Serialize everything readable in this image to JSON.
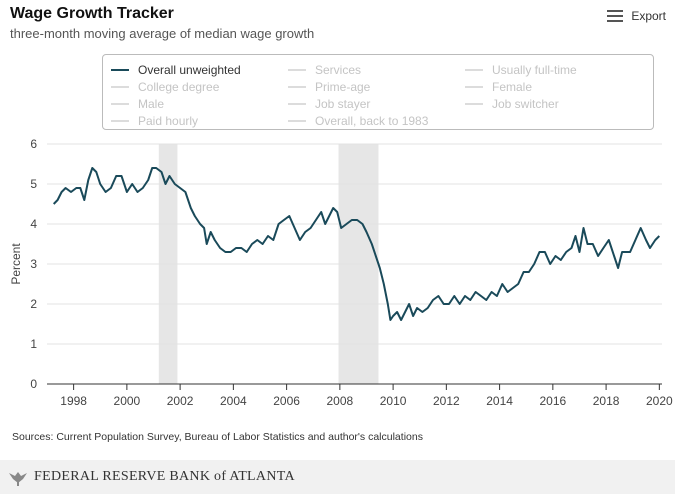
{
  "header": {
    "title": "Wage Growth Tracker",
    "subtitle": "three-month moving average of median wage growth",
    "export_label": "Export"
  },
  "legend": {
    "items": [
      {
        "label": "Overall unweighted",
        "active": true
      },
      {
        "label": "College degree",
        "active": false
      },
      {
        "label": "Male",
        "active": false
      },
      {
        "label": "Paid hourly",
        "active": false
      },
      {
        "label": "Services",
        "active": false
      },
      {
        "label": "Prime-age",
        "active": false
      },
      {
        "label": "Job stayer",
        "active": false
      },
      {
        "label": "Overall, back to 1983",
        "active": false
      },
      {
        "label": "Usually full-time",
        "active": false
      },
      {
        "label": "Female",
        "active": false
      },
      {
        "label": "Job switcher",
        "active": false
      }
    ]
  },
  "chart_data": {
    "type": "line",
    "title": "Wage Growth Tracker",
    "ylabel": "Percent",
    "xlabel": "",
    "ylim": [
      0,
      6
    ],
    "xlim": [
      1997,
      2020.1
    ],
    "yticks": [
      "0",
      "1",
      "2",
      "3",
      "4",
      "5",
      "6"
    ],
    "xticks": [
      "1998",
      "2000",
      "2002",
      "2004",
      "2006",
      "2008",
      "2010",
      "2012",
      "2014",
      "2016",
      "2018",
      "2020"
    ],
    "recessions": [
      {
        "start": 2001.2,
        "end": 2001.9
      },
      {
        "start": 2007.95,
        "end": 2009.45
      }
    ],
    "series": [
      {
        "name": "Overall unweighted",
        "color": "#1a4a5a",
        "points": [
          [
            1997.25,
            4.5
          ],
          [
            1997.4,
            4.6
          ],
          [
            1997.55,
            4.8
          ],
          [
            1997.7,
            4.9
          ],
          [
            1997.9,
            4.8
          ],
          [
            1998.1,
            4.9
          ],
          [
            1998.25,
            4.9
          ],
          [
            1998.4,
            4.6
          ],
          [
            1998.55,
            5.1
          ],
          [
            1998.7,
            5.4
          ],
          [
            1998.85,
            5.3
          ],
          [
            1999.0,
            5.0
          ],
          [
            1999.2,
            4.8
          ],
          [
            1999.4,
            4.9
          ],
          [
            1999.6,
            5.2
          ],
          [
            1999.8,
            5.2
          ],
          [
            2000.0,
            4.8
          ],
          [
            2000.2,
            5.0
          ],
          [
            2000.4,
            4.8
          ],
          [
            2000.6,
            4.9
          ],
          [
            2000.8,
            5.1
          ],
          [
            2000.95,
            5.4
          ],
          [
            2001.1,
            5.4
          ],
          [
            2001.3,
            5.3
          ],
          [
            2001.45,
            5.0
          ],
          [
            2001.6,
            5.2
          ],
          [
            2001.8,
            5.0
          ],
          [
            2002.0,
            4.9
          ],
          [
            2002.2,
            4.8
          ],
          [
            2002.4,
            4.4
          ],
          [
            2002.55,
            4.2
          ],
          [
            2002.75,
            4.0
          ],
          [
            2002.9,
            3.9
          ],
          [
            2003.0,
            3.5
          ],
          [
            2003.15,
            3.8
          ],
          [
            2003.3,
            3.6
          ],
          [
            2003.5,
            3.4
          ],
          [
            2003.7,
            3.3
          ],
          [
            2003.9,
            3.3
          ],
          [
            2004.1,
            3.4
          ],
          [
            2004.3,
            3.4
          ],
          [
            2004.5,
            3.3
          ],
          [
            2004.7,
            3.5
          ],
          [
            2004.9,
            3.6
          ],
          [
            2005.1,
            3.5
          ],
          [
            2005.3,
            3.7
          ],
          [
            2005.5,
            3.6
          ],
          [
            2005.7,
            4.0
          ],
          [
            2005.9,
            4.1
          ],
          [
            2006.1,
            4.2
          ],
          [
            2006.3,
            3.9
          ],
          [
            2006.5,
            3.6
          ],
          [
            2006.7,
            3.8
          ],
          [
            2006.9,
            3.9
          ],
          [
            2007.1,
            4.1
          ],
          [
            2007.3,
            4.3
          ],
          [
            2007.45,
            4.0
          ],
          [
            2007.6,
            4.2
          ],
          [
            2007.75,
            4.4
          ],
          [
            2007.9,
            4.3
          ],
          [
            2008.05,
            3.9
          ],
          [
            2008.25,
            4.0
          ],
          [
            2008.45,
            4.1
          ],
          [
            2008.65,
            4.1
          ],
          [
            2008.85,
            4.0
          ],
          [
            2009.0,
            3.8
          ],
          [
            2009.2,
            3.5
          ],
          [
            2009.35,
            3.2
          ],
          [
            2009.5,
            2.9
          ],
          [
            2009.65,
            2.5
          ],
          [
            2009.8,
            2.0
          ],
          [
            2009.9,
            1.6
          ],
          [
            2010.0,
            1.7
          ],
          [
            2010.15,
            1.8
          ],
          [
            2010.3,
            1.6
          ],
          [
            2010.45,
            1.8
          ],
          [
            2010.6,
            2.0
          ],
          [
            2010.75,
            1.7
          ],
          [
            2010.9,
            1.9
          ],
          [
            2011.1,
            1.8
          ],
          [
            2011.3,
            1.9
          ],
          [
            2011.5,
            2.1
          ],
          [
            2011.7,
            2.2
          ],
          [
            2011.9,
            2.0
          ],
          [
            2012.1,
            2.0
          ],
          [
            2012.3,
            2.2
          ],
          [
            2012.5,
            2.0
          ],
          [
            2012.7,
            2.2
          ],
          [
            2012.9,
            2.1
          ],
          [
            2013.1,
            2.3
          ],
          [
            2013.3,
            2.2
          ],
          [
            2013.5,
            2.1
          ],
          [
            2013.7,
            2.3
          ],
          [
            2013.9,
            2.2
          ],
          [
            2014.1,
            2.5
          ],
          [
            2014.3,
            2.3
          ],
          [
            2014.5,
            2.4
          ],
          [
            2014.7,
            2.5
          ],
          [
            2014.9,
            2.8
          ],
          [
            2015.1,
            2.8
          ],
          [
            2015.3,
            3.0
          ],
          [
            2015.5,
            3.3
          ],
          [
            2015.7,
            3.3
          ],
          [
            2015.9,
            3.0
          ],
          [
            2016.1,
            3.2
          ],
          [
            2016.3,
            3.1
          ],
          [
            2016.5,
            3.3
          ],
          [
            2016.7,
            3.4
          ],
          [
            2016.85,
            3.7
          ],
          [
            2017.0,
            3.3
          ],
          [
            2017.15,
            3.9
          ],
          [
            2017.3,
            3.5
          ],
          [
            2017.5,
            3.5
          ],
          [
            2017.7,
            3.2
          ],
          [
            2017.9,
            3.4
          ],
          [
            2018.1,
            3.6
          ],
          [
            2018.3,
            3.2
          ],
          [
            2018.45,
            2.9
          ],
          [
            2018.6,
            3.3
          ],
          [
            2018.75,
            3.3
          ],
          [
            2018.9,
            3.3
          ],
          [
            2019.1,
            3.6
          ],
          [
            2019.3,
            3.9
          ],
          [
            2019.5,
            3.6
          ],
          [
            2019.65,
            3.4
          ],
          [
            2019.85,
            3.6
          ],
          [
            2020.0,
            3.7
          ]
        ]
      }
    ]
  },
  "source_text": "Sources: Current Population Survey, Bureau of Labor Statistics and author's calculations",
  "footer": {
    "bank_name": "FEDERAL RESERVE BANK of ATLANTA"
  }
}
